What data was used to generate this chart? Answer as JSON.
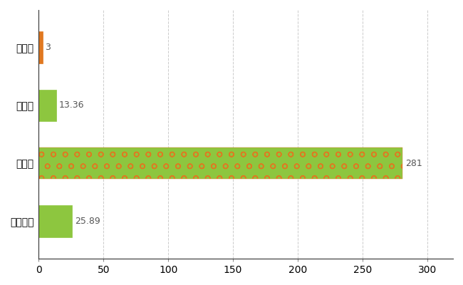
{
  "categories": [
    "栗山町",
    "県平均",
    "県最大",
    "全国平均"
  ],
  "values": [
    3,
    13.36,
    281,
    25.89
  ],
  "bar_colors": [
    "#e07820",
    "#8dc63f",
    "#8dc63f",
    "#8dc63f"
  ],
  "value_labels": [
    "3",
    "13.36",
    "281",
    "25.89"
  ],
  "value_label_colors": [
    "#1e6fc8",
    "#1e6fc8",
    "#1e6fc8",
    "#1e6fc8"
  ],
  "bar_hatches": [
    null,
    null,
    "o",
    null
  ],
  "xlim": [
    0,
    320
  ],
  "xticks": [
    0,
    50,
    100,
    150,
    200,
    250,
    300
  ],
  "grid_color": "#cccccc",
  "background_color": "#ffffff",
  "bar_height": 0.55,
  "label_fontsize": 10,
  "tick_fontsize": 10,
  "value_fontsize": 9
}
